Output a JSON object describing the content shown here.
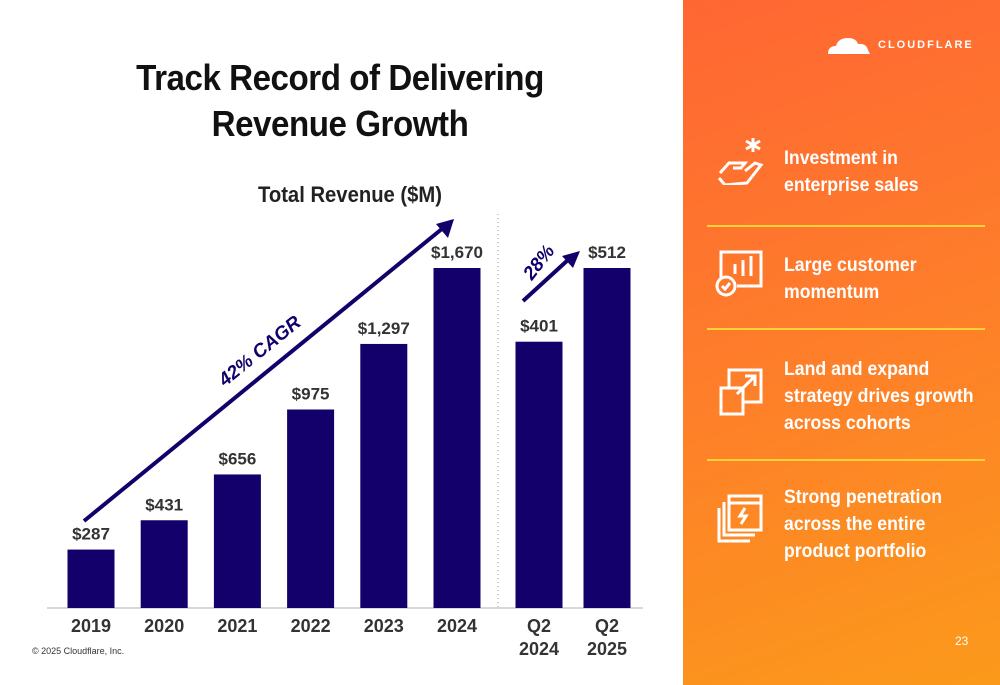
{
  "slide": {
    "title_line1": "Track Record of Delivering",
    "title_line2": "Revenue Growth",
    "copyright": "© 2025 Cloudflare, Inc.",
    "page_number": "23"
  },
  "chart_data": {
    "type": "bar",
    "title": "Total Revenue ($M)",
    "groups": [
      {
        "categories": [
          "2019",
          "2020",
          "2021",
          "2022",
          "2023",
          "2024"
        ],
        "values": [
          287,
          431,
          656,
          975,
          1297,
          1670
        ],
        "labels": [
          "$287",
          "$431",
          "$656",
          "$975",
          "$1,297",
          "$1,670"
        ],
        "annotation": "42% CAGR"
      },
      {
        "categories": [
          "Q2 2024",
          "Q2 2025"
        ],
        "category_lines": [
          [
            "Q2",
            "2024"
          ],
          [
            "Q2",
            "2025"
          ]
        ],
        "values": [
          401,
          512
        ],
        "labels": [
          "$401",
          "$512"
        ],
        "annotation": "28%"
      }
    ],
    "bar_color": "#14006b",
    "grid": false
  },
  "sidebar": {
    "logo_text": "CLOUDFLARE",
    "items": [
      {
        "icon": "hand-spark-icon",
        "line1": "Investment in",
        "line2": "enterprise sales"
      },
      {
        "icon": "chart-check-icon",
        "line1": "Large customer",
        "line2": "momentum"
      },
      {
        "icon": "expand-arrow-icon",
        "line1": "Land and expand",
        "line2": "strategy drives growth",
        "line3": "across cohorts"
      },
      {
        "icon": "stacked-windows-icon",
        "line1": "Strong penetration",
        "line2": "across the entire",
        "line3": "product portfolio"
      }
    ],
    "colors": {
      "start": "#ff6633",
      "end": "#fb9a1a",
      "separator": "#ffd23a"
    }
  }
}
